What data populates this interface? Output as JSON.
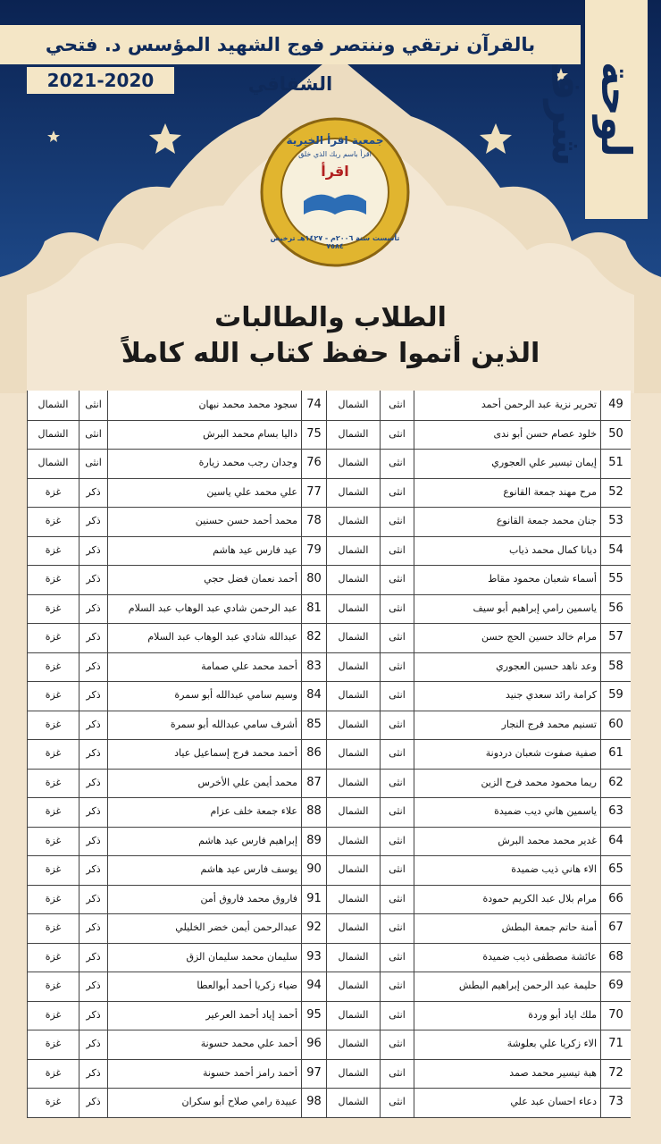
{
  "banner": {
    "badge": "لوحة شرف",
    "motto": "بالقرآن نرتقي وننتصر فوج الشهيد المؤسس د. فتحي الشقاقي",
    "years": "2021-2020"
  },
  "logo": {
    "name": "جمعية اقرأ الخيرية",
    "verse": "اقرأ باسم ربك الذي خلق",
    "center": "اقرأ",
    "founded": "تأسست سنة ٢٠٠٦م - ١٤٢٧هـ ترخيص ٧٥٨٤"
  },
  "heading": {
    "line1": "الطلاب والطالبات",
    "line2": "الذين أتموا حفظ كتاب الله كاملاً"
  },
  "table": {
    "rows": [
      [
        49,
        "تحرير نزية عبد الرحمن أحمد",
        "انثى",
        "الشمال"
      ],
      [
        50,
        "خلود عصام حسن أبو ندى",
        "انثى",
        "الشمال"
      ],
      [
        51,
        "إيمان تيسير علي العجوري",
        "انثى",
        "الشمال"
      ],
      [
        52,
        "مرح مهند جمعة القانوع",
        "انثى",
        "الشمال"
      ],
      [
        53,
        "جنان محمد جمعة القانوع",
        "انثى",
        "الشمال"
      ],
      [
        54,
        "ديانا كمال محمد ذياب",
        "انثى",
        "الشمال"
      ],
      [
        55,
        "أسماء شعبان محمود مقاط",
        "انثى",
        "الشمال"
      ],
      [
        56,
        "ياسمين رامي إبراهيم أبو سيف",
        "انثى",
        "الشمال"
      ],
      [
        57,
        "مرام خالد حسين الحج حسن",
        "انثى",
        "الشمال"
      ],
      [
        58,
        "وعد ناهد حسين العجوري",
        "انثى",
        "الشمال"
      ],
      [
        59,
        "كرامة رائد سعدي جنيد",
        "انثى",
        "الشمال"
      ],
      [
        60,
        "تسنيم محمد فرج النجار",
        "انثى",
        "الشمال"
      ],
      [
        61,
        "صفية صفوت شعبان دردونة",
        "انثى",
        "الشمال"
      ],
      [
        62,
        "ريما محمود محمد فرح الزين",
        "انثى",
        "الشمال"
      ],
      [
        63,
        "ياسمين هاني ديب ضميدة",
        "انثى",
        "الشمال"
      ],
      [
        64,
        "غدير محمد محمد البرش",
        "انثى",
        "الشمال"
      ],
      [
        65,
        "الاء هاني ذيب ضميدة",
        "انثى",
        "الشمال"
      ],
      [
        66,
        "مرام بلال عبد الكريم حمودة",
        "انثى",
        "الشمال"
      ],
      [
        67,
        "أمنة حاتم جمعة البطش",
        "انثى",
        "الشمال"
      ],
      [
        68,
        "عائشة مصطفى ذيب ضميدة",
        "انثى",
        "الشمال"
      ],
      [
        69,
        "حليمة عبد الرحمن إبراهيم البطش",
        "انثى",
        "الشمال"
      ],
      [
        70,
        "ملك اياد أبو وردة",
        "انثى",
        "الشمال"
      ],
      [
        71,
        "الاء زكريا علي بعلوشة",
        "انثى",
        "الشمال"
      ],
      [
        72,
        "هبة تيسير محمد صمد",
        "انثى",
        "الشمال"
      ],
      [
        73,
        "دعاء احسان عبد علي",
        "انثى",
        "الشمال"
      ],
      [
        74,
        "سجود محمد محمد نبهان",
        "انثى",
        "الشمال"
      ],
      [
        75,
        "داليا بسام محمد البرش",
        "انثى",
        "الشمال"
      ],
      [
        76,
        "وجدان رجب محمد زيارة",
        "انثى",
        "الشمال"
      ],
      [
        77,
        "علي محمد علي ياسين",
        "ذكر",
        "غزة"
      ],
      [
        78,
        "محمد أحمد حسن حسنين",
        "ذكر",
        "غزة"
      ],
      [
        79,
        "عيد فارس عيد هاشم",
        "ذكر",
        "غزة"
      ],
      [
        80,
        "أحمد نعمان فضل حجي",
        "ذكر",
        "غزة"
      ],
      [
        81,
        "عبد الرحمن شادي عبد الوهاب عبد السلام",
        "ذكر",
        "غزة"
      ],
      [
        82,
        "عبدالله شادي عبد الوهاب عبد السلام",
        "ذكر",
        "غزة"
      ],
      [
        83,
        "أحمد محمد علي صمامة",
        "ذكر",
        "غزة"
      ],
      [
        84,
        "وسيم سامي عبدالله أبو سمرة",
        "ذكر",
        "غزة"
      ],
      [
        85,
        "أشرف سامي عبدالله أبو سمرة",
        "ذكر",
        "غزة"
      ],
      [
        86,
        "أحمد محمد فرج إسماعيل عياد",
        "ذكر",
        "غزة"
      ],
      [
        87,
        "محمد أيمن علي الأخرس",
        "ذكر",
        "غزة"
      ],
      [
        88,
        "علاء جمعة خلف عزام",
        "ذكر",
        "غزة"
      ],
      [
        89,
        "إبراهيم فارس عيد هاشم",
        "ذكر",
        "غزة"
      ],
      [
        90,
        "يوسف فارس عيد هاشم",
        "ذكر",
        "غزة"
      ],
      [
        91,
        "فاروق محمد فاروق أمن",
        "ذكر",
        "غزة"
      ],
      [
        92,
        "عبدالرحمن أيمن خضر الخليلي",
        "ذكر",
        "غزة"
      ],
      [
        93,
        "سليمان محمد سليمان الزق",
        "ذكر",
        "غزة"
      ],
      [
        94,
        "ضياء زكريا أحمد أبوالعطا",
        "ذكر",
        "غزة"
      ],
      [
        95,
        "أحمد إياد أحمد العرعير",
        "ذكر",
        "غزة"
      ],
      [
        96,
        "أحمد علي محمد حسونة",
        "ذكر",
        "غزة"
      ],
      [
        97,
        "أحمد رامز أحمد حسونة",
        "ذكر",
        "غزة"
      ],
      [
        98,
        "عبيدة رامي صلاح أبو سكران",
        "ذكر",
        "غزة"
      ]
    ]
  }
}
